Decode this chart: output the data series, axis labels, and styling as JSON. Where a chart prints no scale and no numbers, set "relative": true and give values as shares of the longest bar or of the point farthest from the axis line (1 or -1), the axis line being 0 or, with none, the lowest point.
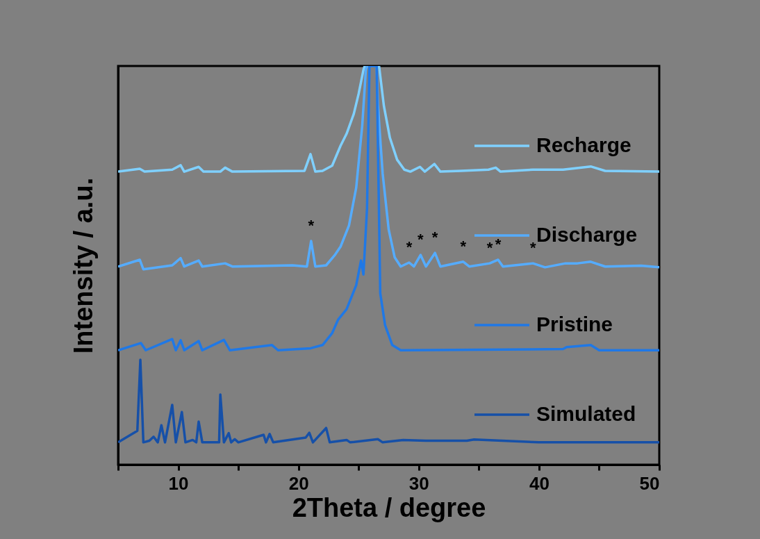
{
  "chart_data": {
    "type": "line",
    "relative": true,
    "xlabel": "2Theta / degree",
    "ylabel": "Intensity / a.u.",
    "xlim": [
      5,
      50
    ],
    "xticks": [
      {
        "value": 5,
        "label": null
      },
      10,
      {
        "value": 15,
        "label": null
      },
      20,
      {
        "value": 25,
        "label": null
      },
      30,
      {
        "value": 35,
        "label": null
      },
      40,
      {
        "value": 45,
        "label": null
      },
      50
    ],
    "grid": false,
    "legend": "right",
    "marker": "none",
    "line_style": "solid",
    "annotations": [
      {
        "text": "*",
        "x": 21.05,
        "y": 0.561
      },
      {
        "text": "*",
        "x": 29.2,
        "y": 0.507
      },
      {
        "text": "*",
        "x": 30.15,
        "y": 0.526
      },
      {
        "text": "*",
        "x": 31.35,
        "y": 0.531
      },
      {
        "text": "*",
        "x": 33.7,
        "y": 0.509
      },
      {
        "text": "*",
        "x": 35.9,
        "y": 0.505
      },
      {
        "text": "*",
        "x": 36.6,
        "y": 0.514
      },
      {
        "text": "*",
        "x": 39.5,
        "y": 0.505
      }
    ],
    "series": [
      {
        "name": "Recharge",
        "color": "#7fd0ff",
        "x": [
          5,
          6.8,
          7.2,
          9.5,
          10.2,
          10.5,
          11.7,
          12.1,
          13.5,
          13.9,
          14.5,
          20.5,
          21.0,
          21.4,
          22.0,
          22.8,
          23.5,
          24.0,
          24.6,
          25.0,
          25.4,
          25.5,
          26.7,
          27.1,
          27.6,
          28.2,
          28.8,
          29.3,
          30.1,
          30.5,
          31.3,
          31.8,
          33.5,
          35.8,
          36.4,
          36.8,
          39.5,
          42.0,
          44.3,
          45.5,
          50
        ],
        "values": [
          0.735,
          0.742,
          0.735,
          0.74,
          0.751,
          0.735,
          0.747,
          0.735,
          0.735,
          0.745,
          0.735,
          0.737,
          0.779,
          0.735,
          0.737,
          0.75,
          0.8,
          0.83,
          0.88,
          0.93,
          0.99,
          1.0,
          1.0,
          0.9,
          0.82,
          0.765,
          0.74,
          0.735,
          0.747,
          0.735,
          0.754,
          0.735,
          0.737,
          0.74,
          0.745,
          0.735,
          0.74,
          0.74,
          0.748,
          0.737,
          0.735
        ]
      },
      {
        "name": "Discharge",
        "color": "#55acff",
        "x": [
          5,
          6.8,
          7.1,
          9.5,
          10.2,
          10.5,
          11.7,
          12.0,
          13.9,
          14.5,
          19.5,
          20.7,
          21.05,
          21.4,
          22.3,
          23.0,
          23.5,
          24.2,
          24.8,
          25.3,
          25.6,
          25.7,
          26.5,
          26.6,
          27.0,
          27.5,
          28.0,
          28.5,
          29.2,
          29.6,
          30.15,
          30.6,
          31.35,
          31.8,
          33.7,
          34.2,
          35.9,
          36.6,
          37.0,
          39.5,
          40.5,
          42.2,
          43.2,
          44.3,
          45.5,
          48.5,
          50
        ],
        "values": [
          0.497,
          0.514,
          0.49,
          0.5,
          0.518,
          0.497,
          0.512,
          0.497,
          0.505,
          0.497,
          0.5,
          0.497,
          0.561,
          0.497,
          0.5,
          0.525,
          0.547,
          0.6,
          0.695,
          0.85,
          0.99,
          1.0,
          1.0,
          0.904,
          0.73,
          0.59,
          0.52,
          0.497,
          0.507,
          0.497,
          0.526,
          0.497,
          0.531,
          0.497,
          0.509,
          0.497,
          0.505,
          0.514,
          0.497,
          0.505,
          0.495,
          0.505,
          0.505,
          0.509,
          0.497,
          0.499,
          0.495
        ]
      },
      {
        "name": "Pristine",
        "color": "#1f78e6",
        "x": [
          5,
          6.9,
          7.3,
          9.5,
          9.8,
          10.2,
          10.5,
          11.7,
          12.0,
          13.8,
          14.3,
          17.8,
          18.3,
          21.0,
          22.0,
          22.8,
          23.3,
          24.0,
          24.8,
          25.2,
          25.4,
          25.7,
          25.9,
          26.5,
          26.8,
          27.2,
          27.8,
          28.5,
          42.0,
          42.3,
          44.3,
          45.0,
          50
        ],
        "values": [
          0.287,
          0.305,
          0.287,
          0.315,
          0.287,
          0.312,
          0.287,
          0.31,
          0.287,
          0.313,
          0.287,
          0.3,
          0.287,
          0.292,
          0.3,
          0.33,
          0.364,
          0.39,
          0.45,
          0.512,
          0.477,
          0.643,
          1.0,
          1.0,
          0.43,
          0.35,
          0.3,
          0.287,
          0.29,
          0.295,
          0.3,
          0.287,
          0.287
        ]
      },
      {
        "name": "Simulated",
        "color": "#1650a8",
        "x": [
          5,
          6.6,
          6.85,
          7.1,
          7.6,
          7.95,
          8.3,
          8.6,
          8.9,
          9.5,
          9.8,
          10.3,
          10.6,
          11.2,
          11.5,
          11.7,
          12.0,
          13.4,
          13.5,
          13.8,
          14.2,
          14.4,
          14.7,
          15.0,
          17.1,
          17.3,
          17.6,
          17.9,
          20.6,
          20.9,
          21.2,
          22.3,
          22.6,
          24.0,
          24.3,
          26.6,
          27.0,
          28.7,
          30.6,
          34.0,
          34.6,
          40.0,
          50
        ],
        "values": [
          0.056,
          0.085,
          0.263,
          0.056,
          0.06,
          0.07,
          0.056,
          0.099,
          0.056,
          0.15,
          0.056,
          0.132,
          0.056,
          0.062,
          0.056,
          0.108,
          0.056,
          0.056,
          0.176,
          0.056,
          0.079,
          0.056,
          0.064,
          0.056,
          0.075,
          0.056,
          0.077,
          0.056,
          0.068,
          0.08,
          0.056,
          0.092,
          0.056,
          0.062,
          0.056,
          0.064,
          0.056,
          0.062,
          0.06,
          0.06,
          0.063,
          0.056,
          0.056
        ]
      }
    ]
  }
}
